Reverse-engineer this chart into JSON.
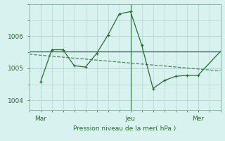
{
  "xlabel": "Pression niveau de la mer( hPa )",
  "background_color": "#d8f2ef",
  "grid_color": "#b8d4d0",
  "line_color": "#2d6a35",
  "ylim": [
    1003.7,
    1007.0
  ],
  "yticks": [
    1004,
    1005,
    1006
  ],
  "x_tick_labels": [
    "Mar",
    "Jeu",
    "Mer"
  ],
  "x_tick_positions": [
    1,
    9,
    15
  ],
  "xlim": [
    0,
    17
  ],
  "vline_x": 9,
  "hline_y": 1005.53,
  "trend_x": [
    0,
    17
  ],
  "trend_y": [
    1005.44,
    1004.92
  ],
  "main_x": [
    1,
    2,
    3,
    4,
    5,
    6,
    7,
    8,
    9,
    10,
    11,
    12,
    13,
    14,
    15,
    17
  ],
  "main_y": [
    1004.57,
    1005.58,
    1005.58,
    1005.08,
    1005.04,
    1005.47,
    1006.04,
    1006.7,
    1006.77,
    1005.72,
    1004.37,
    1004.62,
    1004.75,
    1004.78,
    1004.78,
    1005.53
  ]
}
